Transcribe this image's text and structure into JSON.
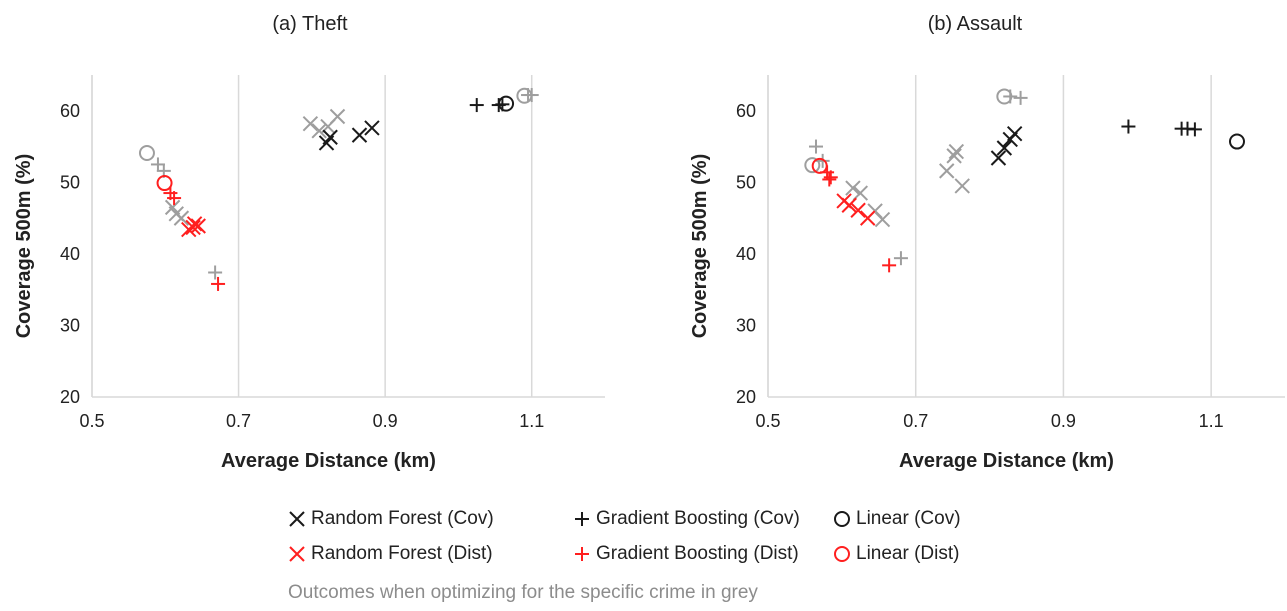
{
  "colors": {
    "black": "#1a1a1a",
    "red": "#ff1f1f",
    "grey": "#9e9e9e",
    "grid": "#d9d9d9"
  },
  "chart_data": [
    {
      "type": "scatter",
      "title": "(a) Theft",
      "xlabel": "Average Distance (km)",
      "ylabel": "Coverage 500m (%)",
      "xlim": [
        0.5,
        1.2
      ],
      "ylim": [
        20,
        65
      ],
      "xticks": [
        "0.5",
        "0.7",
        "0.9",
        "1.1"
      ],
      "yticks": [
        "20",
        "30",
        "40",
        "50",
        "60"
      ],
      "grid": "vertical",
      "series": [
        {
          "name": "Random Forest (Cov)",
          "marker": "x",
          "color": "black",
          "points": [
            [
              0.82,
              55.5
            ],
            [
              0.825,
              56.3
            ],
            [
              0.865,
              56.6
            ],
            [
              0.882,
              57.6
            ]
          ]
        },
        {
          "name": "Gradient Boosting (Cov)",
          "marker": "plus",
          "color": "black",
          "points": [
            [
              1.025,
              60.8
            ],
            [
              1.055,
              60.8
            ],
            [
              1.06,
              60.9
            ]
          ]
        },
        {
          "name": "Linear (Cov)",
          "marker": "circle",
          "color": "black",
          "points": [
            [
              1.065,
              61.0
            ]
          ]
        },
        {
          "name": "Random Forest (Dist)",
          "marker": "x",
          "color": "red",
          "points": [
            [
              0.632,
              43.4
            ],
            [
              0.638,
              43.7
            ],
            [
              0.645,
              43.9
            ],
            [
              0.64,
              44.2
            ]
          ]
        },
        {
          "name": "Gradient Boosting (Dist)",
          "marker": "plus",
          "color": "red",
          "points": [
            [
              0.607,
              48.5
            ],
            [
              0.612,
              47.8
            ],
            [
              0.672,
              35.8
            ]
          ]
        },
        {
          "name": "Linear (Dist)",
          "marker": "circle",
          "color": "red",
          "points": [
            [
              0.599,
              49.9
            ]
          ]
        },
        {
          "name": "Random Forest (grey)",
          "marker": "x",
          "color": "grey",
          "points": [
            [
              0.798,
              58.2
            ],
            [
              0.81,
              57.2
            ],
            [
              0.822,
              57.8
            ],
            [
              0.835,
              59.2
            ],
            [
              0.615,
              45.6
            ],
            [
              0.622,
              45.0
            ],
            [
              0.61,
              46.5
            ]
          ]
        },
        {
          "name": "Gradient Boosting (grey)",
          "marker": "plus",
          "color": "grey",
          "points": [
            [
              0.59,
              52.5
            ],
            [
              0.598,
              51.6
            ],
            [
              0.668,
              37.4
            ],
            [
              1.095,
              62.2
            ],
            [
              1.1,
              62.2
            ]
          ]
        },
        {
          "name": "Linear (grey)",
          "marker": "circle",
          "color": "grey",
          "points": [
            [
              0.575,
              54.1
            ],
            [
              1.09,
              62.1
            ]
          ]
        }
      ]
    },
    {
      "type": "scatter",
      "title": "(b) Assault",
      "xlabel": "Average Distance (km)",
      "ylabel": "Coverage 500m (%)",
      "xlim": [
        0.5,
        1.2
      ],
      "ylim": [
        20,
        65
      ],
      "xticks": [
        "0.5",
        "0.7",
        "0.9",
        "1.1"
      ],
      "yticks": [
        "20",
        "30",
        "40",
        "50",
        "60"
      ],
      "grid": "vertical",
      "series": [
        {
          "name": "Random Forest (Cov)",
          "marker": "x",
          "color": "black",
          "points": [
            [
              0.812,
              53.4
            ],
            [
              0.82,
              54.8
            ],
            [
              0.828,
              56.0
            ],
            [
              0.834,
              56.8
            ]
          ]
        },
        {
          "name": "Gradient Boosting (Cov)",
          "marker": "plus",
          "color": "black",
          "points": [
            [
              0.988,
              57.8
            ],
            [
              1.06,
              57.5
            ],
            [
              1.068,
              57.5
            ],
            [
              1.078,
              57.4
            ]
          ]
        },
        {
          "name": "Linear (Cov)",
          "marker": "circle",
          "color": "black",
          "points": [
            [
              1.135,
              55.7
            ]
          ]
        },
        {
          "name": "Random Forest (Dist)",
          "marker": "x",
          "color": "red",
          "points": [
            [
              0.603,
              47.4
            ],
            [
              0.61,
              46.8
            ],
            [
              0.622,
              46.1
            ],
            [
              0.635,
              45.0
            ]
          ]
        },
        {
          "name": "Gradient Boosting (Dist)",
          "marker": "plus",
          "color": "red",
          "points": [
            [
              0.58,
              51.4
            ],
            [
              0.583,
              50.4
            ],
            [
              0.585,
              50.7
            ],
            [
              0.664,
              38.4
            ]
          ]
        },
        {
          "name": "Linear (Dist)",
          "marker": "circle",
          "color": "red",
          "points": [
            [
              0.57,
              52.3
            ]
          ]
        },
        {
          "name": "Random Forest (grey)",
          "marker": "x",
          "color": "grey",
          "points": [
            [
              0.742,
              51.6
            ],
            [
              0.752,
              53.7
            ],
            [
              0.755,
              54.3
            ],
            [
              0.763,
              49.5
            ],
            [
              0.615,
              49.2
            ],
            [
              0.645,
              46.0
            ],
            [
              0.655,
              44.8
            ],
            [
              0.625,
              48.5
            ]
          ]
        },
        {
          "name": "Gradient Boosting (grey)",
          "marker": "plus",
          "color": "grey",
          "points": [
            [
              0.565,
              55.0
            ],
            [
              0.574,
              53.0
            ],
            [
              0.68,
              39.4
            ],
            [
              0.828,
              62.0
            ],
            [
              0.842,
              61.8
            ]
          ]
        },
        {
          "name": "Linear (grey)",
          "marker": "circle",
          "color": "grey",
          "points": [
            [
              0.56,
              52.4
            ],
            [
              0.82,
              62.0
            ]
          ]
        }
      ]
    }
  ],
  "legend": {
    "items": [
      {
        "label": "Random Forest (Cov)",
        "marker": "x",
        "color": "black"
      },
      {
        "label": "Gradient Boosting (Cov)",
        "marker": "plus",
        "color": "black"
      },
      {
        "label": "Linear (Cov)",
        "marker": "circle",
        "color": "black"
      },
      {
        "label": "Random Forest (Dist)",
        "marker": "x",
        "color": "red"
      },
      {
        "label": "Gradient Boosting (Dist)",
        "marker": "plus",
        "color": "red"
      },
      {
        "label": "Linear (Dist)",
        "marker": "circle",
        "color": "red"
      }
    ],
    "note": "Outcomes when optimizing for the specific crime in grey"
  }
}
